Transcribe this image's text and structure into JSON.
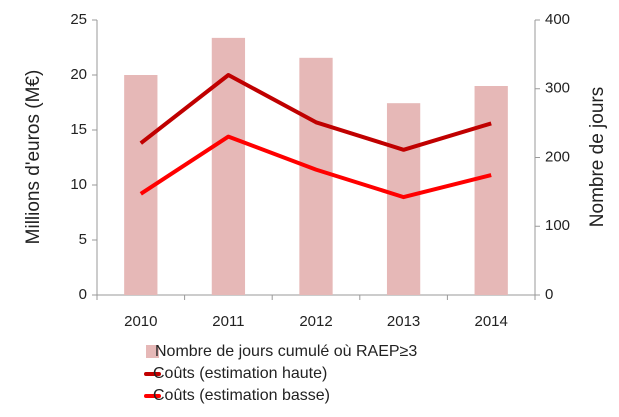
{
  "chart_data": {
    "type": "bar_line",
    "categories": [
      "2010",
      "2011",
      "2012",
      "2013",
      "2014"
    ],
    "ylabel": "Millions d'euros (M€)",
    "y2label": "Nombre de jours",
    "ylim": [
      0,
      25
    ],
    "yticks": [
      0,
      5,
      10,
      15,
      20,
      25
    ],
    "y2lim": [
      0,
      400
    ],
    "y2ticks": [
      0,
      100,
      200,
      300,
      400
    ],
    "grid": false,
    "legend": "bottom",
    "series": [
      {
        "name": "Nombre de jours cumulé où RAEP≥3",
        "type": "bar",
        "axis": "y2",
        "color": "#e6b8b7",
        "values": [
          320,
          374,
          345,
          279,
          304
        ]
      },
      {
        "name": "Coûts (estimation haute)",
        "type": "line",
        "color": "#c00000",
        "values": [
          13.8,
          20,
          15.7,
          13.2,
          15.6
        ]
      },
      {
        "name": "Coûts (estimation basse)",
        "type": "line",
        "color": "#ff0000",
        "values": [
          9.2,
          14.4,
          11.4,
          8.9,
          10.9
        ]
      }
    ]
  }
}
